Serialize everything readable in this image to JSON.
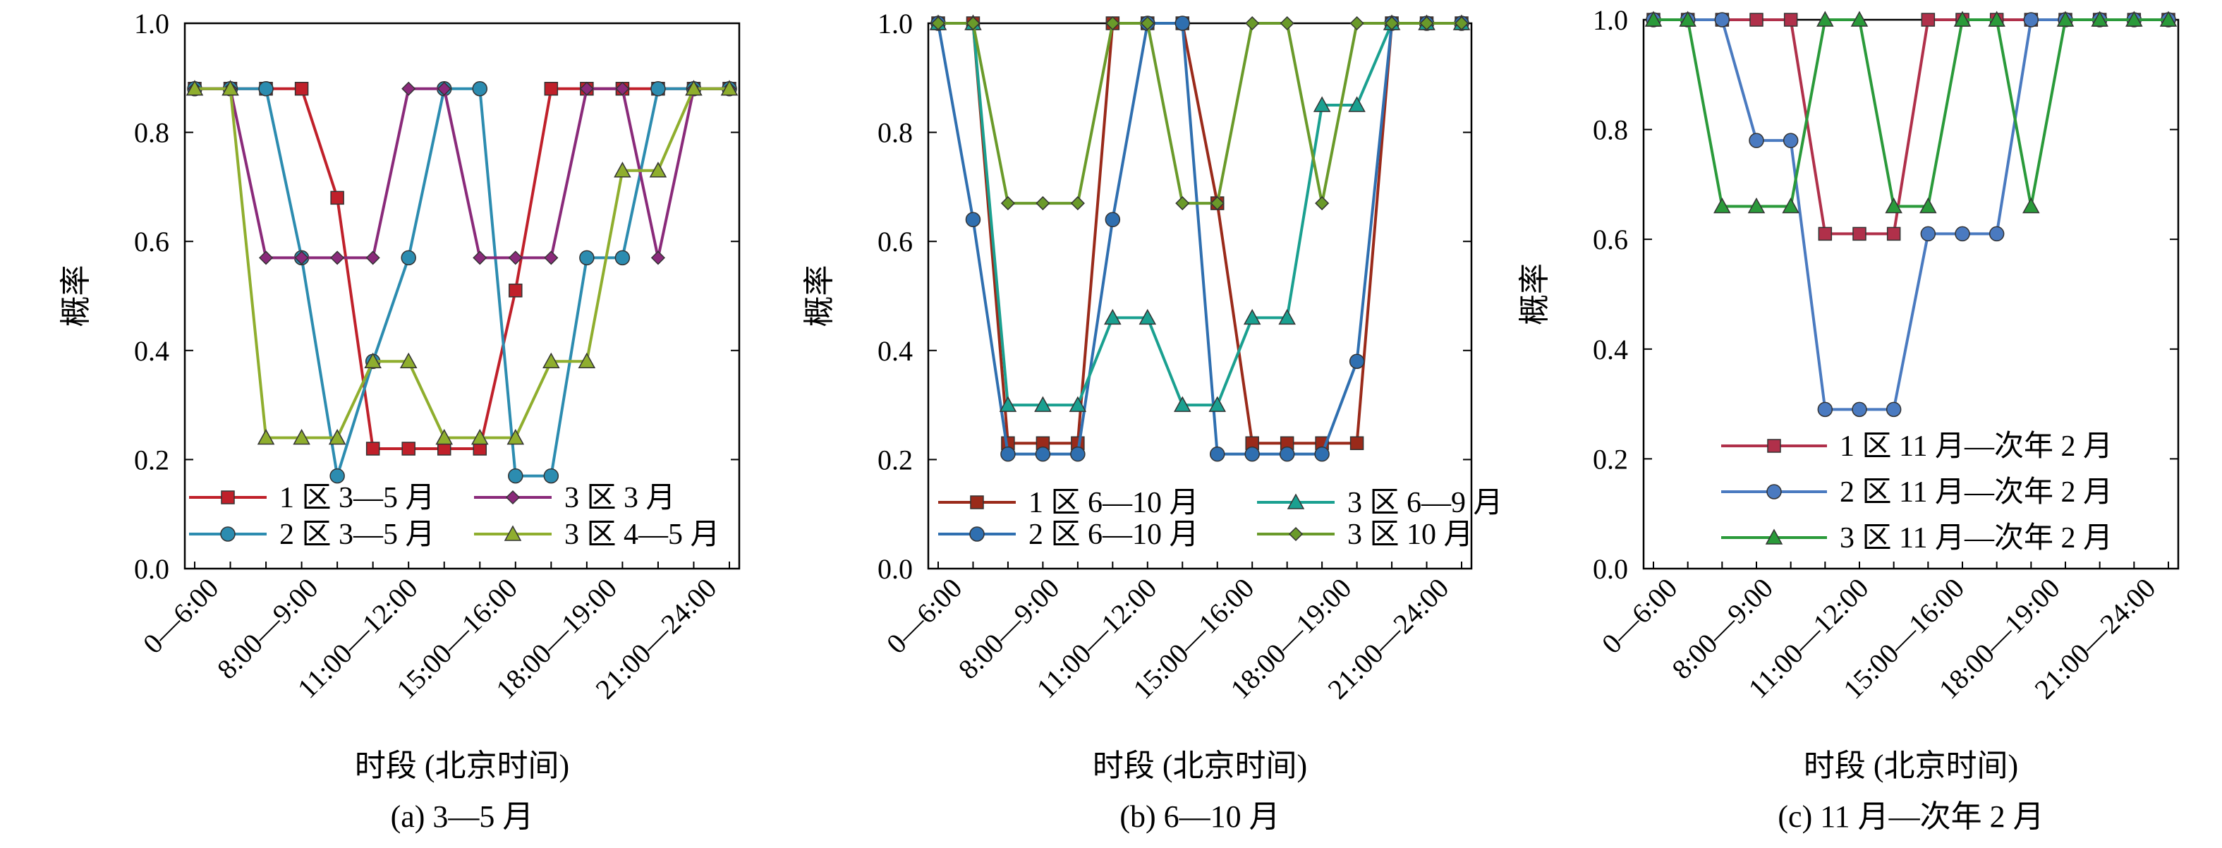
{
  "chart_data": [
    {
      "type": "line",
      "caption": "(a) 3—5 月",
      "xlabel": "时段 (北京时间)",
      "ylabel": "概率",
      "ylim": [
        0,
        1.0
      ],
      "yticks": [
        "0.0",
        "0.2",
        "0.4",
        "0.6",
        "0.8",
        "1.0"
      ],
      "xticks": [
        "0—6:00",
        "8:00—9:00",
        "11:00—12:00",
        "15:00—16:00",
        "18:00—19:00",
        "21:00—24:00"
      ],
      "x": [
        0,
        1,
        2,
        3,
        4,
        5,
        6,
        7,
        8,
        9,
        10,
        11,
        12,
        13,
        14,
        15
      ],
      "legend_layout": "2col",
      "series": [
        {
          "name": "1 区 3—5 月",
          "color": "#c0202a",
          "marker": "square",
          "values": [
            0.88,
            0.88,
            0.88,
            0.88,
            0.68,
            0.22,
            0.22,
            0.22,
            0.22,
            0.51,
            0.88,
            0.88,
            0.88,
            0.88,
            0.88,
            0.88
          ]
        },
        {
          "name": "2 区 3—5 月",
          "color": "#2c8cb0",
          "marker": "circle",
          "values": [
            0.88,
            0.88,
            0.88,
            0.57,
            0.17,
            0.38,
            0.57,
            0.88,
            0.88,
            0.17,
            0.17,
            0.57,
            0.57,
            0.88,
            0.88,
            0.88
          ]
        },
        {
          "name": "3 区 3 月",
          "color": "#8a2a7a",
          "marker": "diamond",
          "values": [
            0.88,
            0.88,
            0.57,
            0.57,
            0.57,
            0.57,
            0.88,
            0.88,
            0.57,
            0.57,
            0.57,
            0.88,
            0.88,
            0.57,
            0.88,
            0.88
          ]
        },
        {
          "name": "3 区 4—5 月",
          "color": "#8fae2e",
          "marker": "triangle",
          "values": [
            0.88,
            0.88,
            0.24,
            0.24,
            0.24,
            0.38,
            0.38,
            0.24,
            0.24,
            0.24,
            0.38,
            0.38,
            0.73,
            0.73,
            0.88,
            0.88
          ]
        }
      ]
    },
    {
      "type": "line",
      "caption": "(b) 6—10 月",
      "xlabel": "时段 (北京时间)",
      "ylabel": "概率",
      "ylim": [
        0,
        1.0
      ],
      "yticks": [
        "0.0",
        "0.2",
        "0.4",
        "0.6",
        "0.8",
        "1.0"
      ],
      "xticks": [
        "0—6:00",
        "8:00—9:00",
        "11:00—12:00",
        "15:00—16:00",
        "18:00—19:00",
        "21:00—24:00"
      ],
      "x": [
        0,
        1,
        2,
        3,
        4,
        5,
        6,
        7,
        8,
        9,
        10,
        11,
        12,
        13,
        14,
        15
      ],
      "legend_layout": "2col",
      "series": [
        {
          "name": "1 区 6—10 月",
          "color": "#9a2a1a",
          "marker": "square",
          "values": [
            1.0,
            1.0,
            0.23,
            0.23,
            0.23,
            1.0,
            1.0,
            1.0,
            0.67,
            0.23,
            0.23,
            0.23,
            0.23,
            1.0,
            1.0,
            1.0
          ]
        },
        {
          "name": "2 区 6—10 月",
          "color": "#2f6fb0",
          "marker": "circle",
          "values": [
            1.0,
            0.64,
            0.21,
            0.21,
            0.21,
            0.64,
            1.0,
            1.0,
            0.21,
            0.21,
            0.21,
            0.21,
            0.38,
            1.0,
            1.0,
            1.0
          ]
        },
        {
          "name": "3 区 6—9 月",
          "color": "#1aa090",
          "marker": "triangle",
          "values": [
            1.0,
            1.0,
            0.3,
            0.3,
            0.3,
            0.46,
            0.46,
            0.3,
            0.3,
            0.46,
            0.46,
            0.85,
            0.85,
            1.0,
            1.0,
            1.0
          ]
        },
        {
          "name": "3 区 10 月",
          "color": "#6a9a2a",
          "marker": "diamond",
          "values": [
            1.0,
            1.0,
            0.67,
            0.67,
            0.67,
            1.0,
            1.0,
            0.67,
            0.67,
            1.0,
            1.0,
            0.67,
            1.0,
            1.0,
            1.0,
            1.0
          ]
        }
      ]
    },
    {
      "type": "line",
      "caption": "(c) 11 月—次年 2 月",
      "xlabel": "时段 (北京时间)",
      "ylabel": "概率",
      "ylim": [
        0,
        1.0
      ],
      "yticks": [
        "0.0",
        "0.2",
        "0.4",
        "0.6",
        "0.8",
        "1.0"
      ],
      "xticks": [
        "0—6:00",
        "8:00—9:00",
        "11:00—12:00",
        "15:00—16:00",
        "18:00—19:00",
        "21:00—24:00"
      ],
      "x": [
        0,
        1,
        2,
        3,
        4,
        5,
        6,
        7,
        8,
        9,
        10,
        11,
        12,
        13,
        14,
        15
      ],
      "legend_layout": "1col",
      "series": [
        {
          "name": "1 区 11 月—次年 2 月",
          "color": "#b0304a",
          "marker": "square",
          "values": [
            1.0,
            1.0,
            1.0,
            1.0,
            1.0,
            0.61,
            0.61,
            0.61,
            1.0,
            1.0,
            1.0,
            1.0,
            1.0,
            1.0,
            1.0,
            1.0
          ]
        },
        {
          "name": "2 区 11 月—次年 2 月",
          "color": "#4a7ac0",
          "marker": "circle",
          "values": [
            1.0,
            1.0,
            1.0,
            0.78,
            0.78,
            0.29,
            0.29,
            0.29,
            0.61,
            0.61,
            0.61,
            1.0,
            1.0,
            1.0,
            1.0,
            1.0
          ]
        },
        {
          "name": "3 区 11 月—次年 2 月",
          "color": "#2a9a3a",
          "marker": "triangle",
          "values": [
            1.0,
            1.0,
            0.66,
            0.66,
            0.66,
            1.0,
            1.0,
            0.66,
            0.66,
            1.0,
            1.0,
            0.66,
            1.0,
            1.0,
            1.0,
            1.0
          ]
        }
      ]
    }
  ]
}
